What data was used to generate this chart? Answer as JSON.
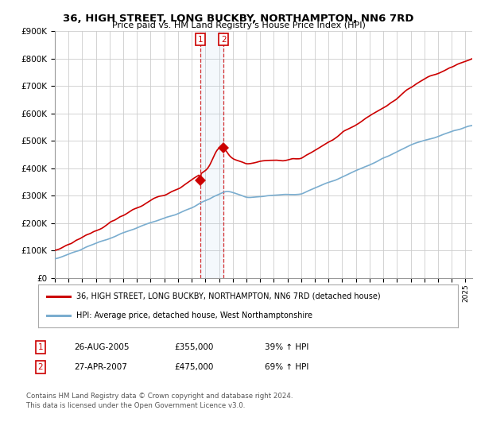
{
  "title": "36, HIGH STREET, LONG BUCKBY, NORTHAMPTON, NN6 7RD",
  "subtitle": "Price paid vs. HM Land Registry's House Price Index (HPI)",
  "legend_line1": "36, HIGH STREET, LONG BUCKBY, NORTHAMPTON, NN6 7RD (detached house)",
  "legend_line2": "HPI: Average price, detached house, West Northamptonshire",
  "footnote": "Contains HM Land Registry data © Crown copyright and database right 2024.\nThis data is licensed under the Open Government Licence v3.0.",
  "transaction1_date": "26-AUG-2005",
  "transaction1_price": "£355,000",
  "transaction1_hpi": "39% ↑ HPI",
  "transaction1_year": 2005.646,
  "transaction1_value": 355000,
  "transaction2_date": "27-APR-2007",
  "transaction2_price": "£475,000",
  "transaction2_hpi": "69% ↑ HPI",
  "transaction2_year": 2007.32,
  "transaction2_value": 475000,
  "red_color": "#cc0000",
  "blue_color": "#7aadcf",
  "background_color": "#ffffff",
  "grid_color": "#cccccc",
  "ylim_max": 900000,
  "xlim_start": 1995.0,
  "xlim_end": 2025.5
}
